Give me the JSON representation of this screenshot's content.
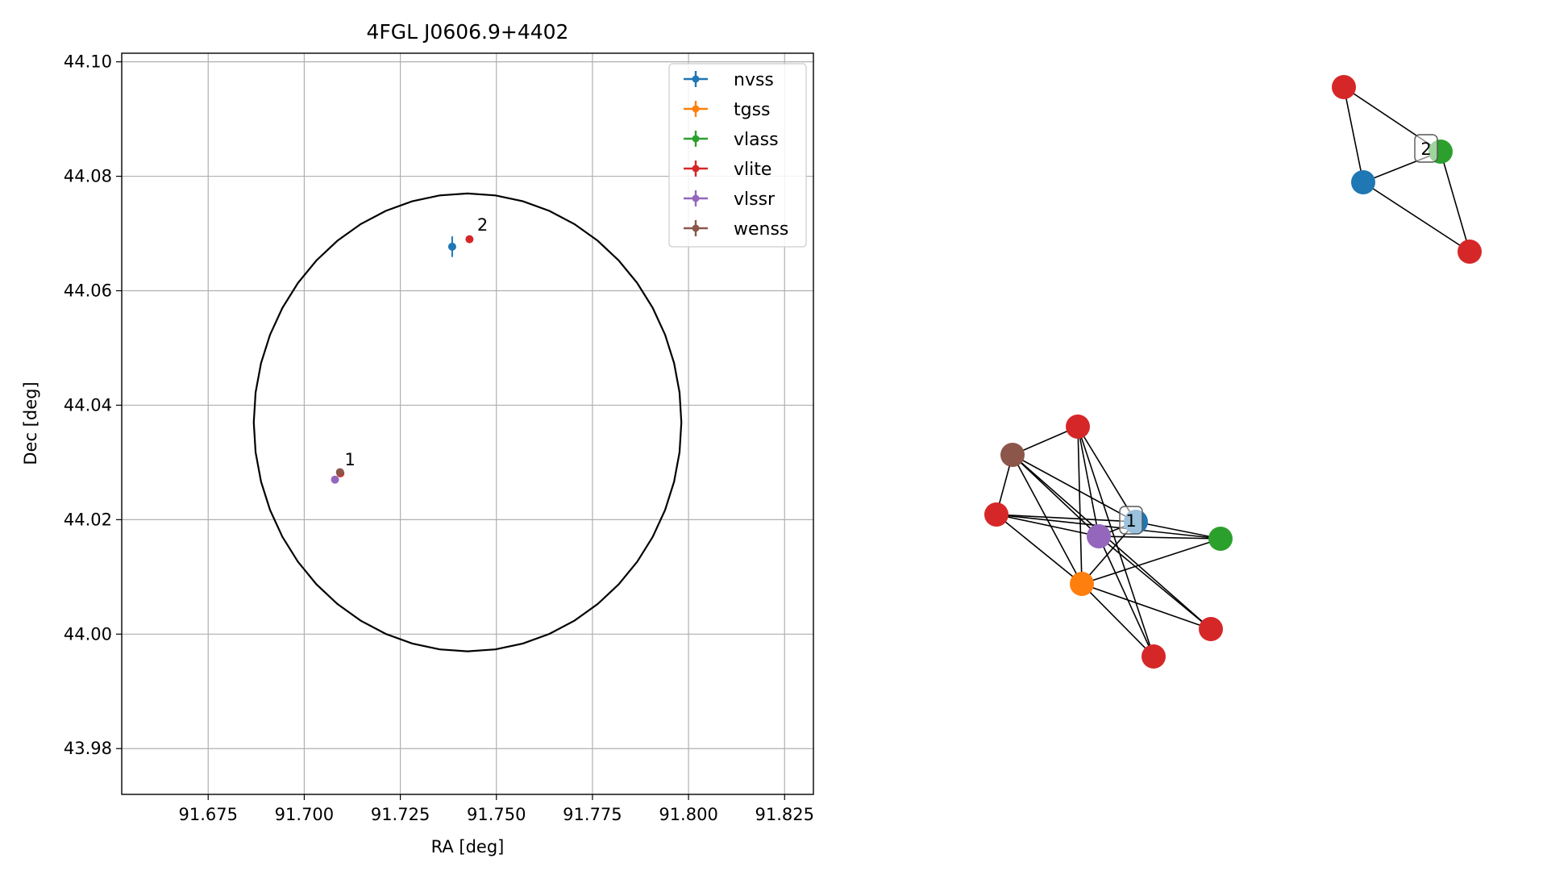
{
  "chart_data": [
    {
      "type": "scatter",
      "title": "4FGL J0606.9+4402",
      "xlabel": "RA [deg]",
      "ylabel": "Dec [deg]",
      "xlim": [
        91.6525,
        91.8325
      ],
      "ylim": [
        43.972,
        44.1015
      ],
      "xticks": [
        "91.675",
        "91.700",
        "91.725",
        "91.750",
        "91.775",
        "91.800",
        "91.825"
      ],
      "yticks": [
        "43.98",
        "44.00",
        "44.02",
        "44.04",
        "44.06",
        "44.08",
        "44.10"
      ],
      "xtick_values": [
        91.675,
        91.7,
        91.725,
        91.75,
        91.775,
        91.8,
        91.825
      ],
      "ytick_values": [
        43.98,
        44.0,
        44.02,
        44.04,
        44.06,
        44.08,
        44.1
      ],
      "grid": true,
      "legend_position": "top-right",
      "series": [
        {
          "name": "nvss",
          "color": "#1f77b4",
          "points": [
            {
              "ra": 91.7385,
              "dec": 44.0677,
              "dec_err": 0.0018,
              "ra_err": 0.0008
            }
          ]
        },
        {
          "name": "tgss",
          "color": "#ff7f0e",
          "points": []
        },
        {
          "name": "vlass",
          "color": "#2ca02c",
          "points": []
        },
        {
          "name": "vlite",
          "color": "#d62728",
          "points": [
            {
              "ra": 91.743,
              "dec": 44.069
            },
            {
              "ra": 91.7094,
              "dec": 44.0281
            }
          ]
        },
        {
          "name": "vlssr",
          "color": "#9467bd",
          "points": [
            {
              "ra": 91.708,
              "dec": 44.027
            }
          ]
        },
        {
          "name": "wenss",
          "color": "#8c564b",
          "points": [
            {
              "ra": 91.7093,
              "dec": 44.0283
            }
          ]
        }
      ],
      "circle": {
        "center_ra": 91.7425,
        "center_dec": 44.037,
        "radius_deg": 0.04
      },
      "annotations": [
        {
          "text": "1",
          "ra": 91.7105,
          "dec": 44.0295
        },
        {
          "text": "2",
          "ra": 91.745,
          "dec": 44.0705
        }
      ]
    },
    {
      "type": "network",
      "groups": [
        {
          "label": "2",
          "nodes": [
            {
              "id": "a",
              "color": "#d62728"
            },
            {
              "id": "b",
              "color": "#1f77b4"
            },
            {
              "id": "c",
              "color": "#2ca02c"
            },
            {
              "id": "d",
              "color": "#d62728"
            }
          ],
          "edges": [
            [
              "a",
              "b"
            ],
            [
              "a",
              "c"
            ],
            [
              "b",
              "c"
            ],
            [
              "b",
              "d"
            ],
            [
              "c",
              "d"
            ]
          ]
        },
        {
          "label": "1",
          "nodes": [
            {
              "id": "r1",
              "color": "#d62728"
            },
            {
              "id": "w",
              "color": "#8c564b"
            },
            {
              "id": "r2",
              "color": "#d62728"
            },
            {
              "id": "n",
              "color": "#1f77b4"
            },
            {
              "id": "p",
              "color": "#9467bd"
            },
            {
              "id": "g",
              "color": "#2ca02c"
            },
            {
              "id": "o",
              "color": "#ff7f0e"
            },
            {
              "id": "r3",
              "color": "#d62728"
            },
            {
              "id": "r4",
              "color": "#d62728"
            }
          ],
          "edges": [
            [
              "w",
              "r1"
            ],
            [
              "w",
              "r2"
            ],
            [
              "w",
              "n"
            ],
            [
              "w",
              "p"
            ],
            [
              "w",
              "o"
            ],
            [
              "w",
              "r3"
            ],
            [
              "r1",
              "n"
            ],
            [
              "r1",
              "p"
            ],
            [
              "r1",
              "o"
            ],
            [
              "r1",
              "r4"
            ],
            [
              "r2",
              "n"
            ],
            [
              "r2",
              "p"
            ],
            [
              "r2",
              "o"
            ],
            [
              "r2",
              "g"
            ],
            [
              "n",
              "p"
            ],
            [
              "n",
              "g"
            ],
            [
              "n",
              "o"
            ],
            [
              "p",
              "g"
            ],
            [
              "p",
              "r3"
            ],
            [
              "p",
              "r4"
            ],
            [
              "o",
              "g"
            ],
            [
              "o",
              "r4"
            ],
            [
              "o",
              "r3"
            ]
          ]
        }
      ]
    }
  ]
}
